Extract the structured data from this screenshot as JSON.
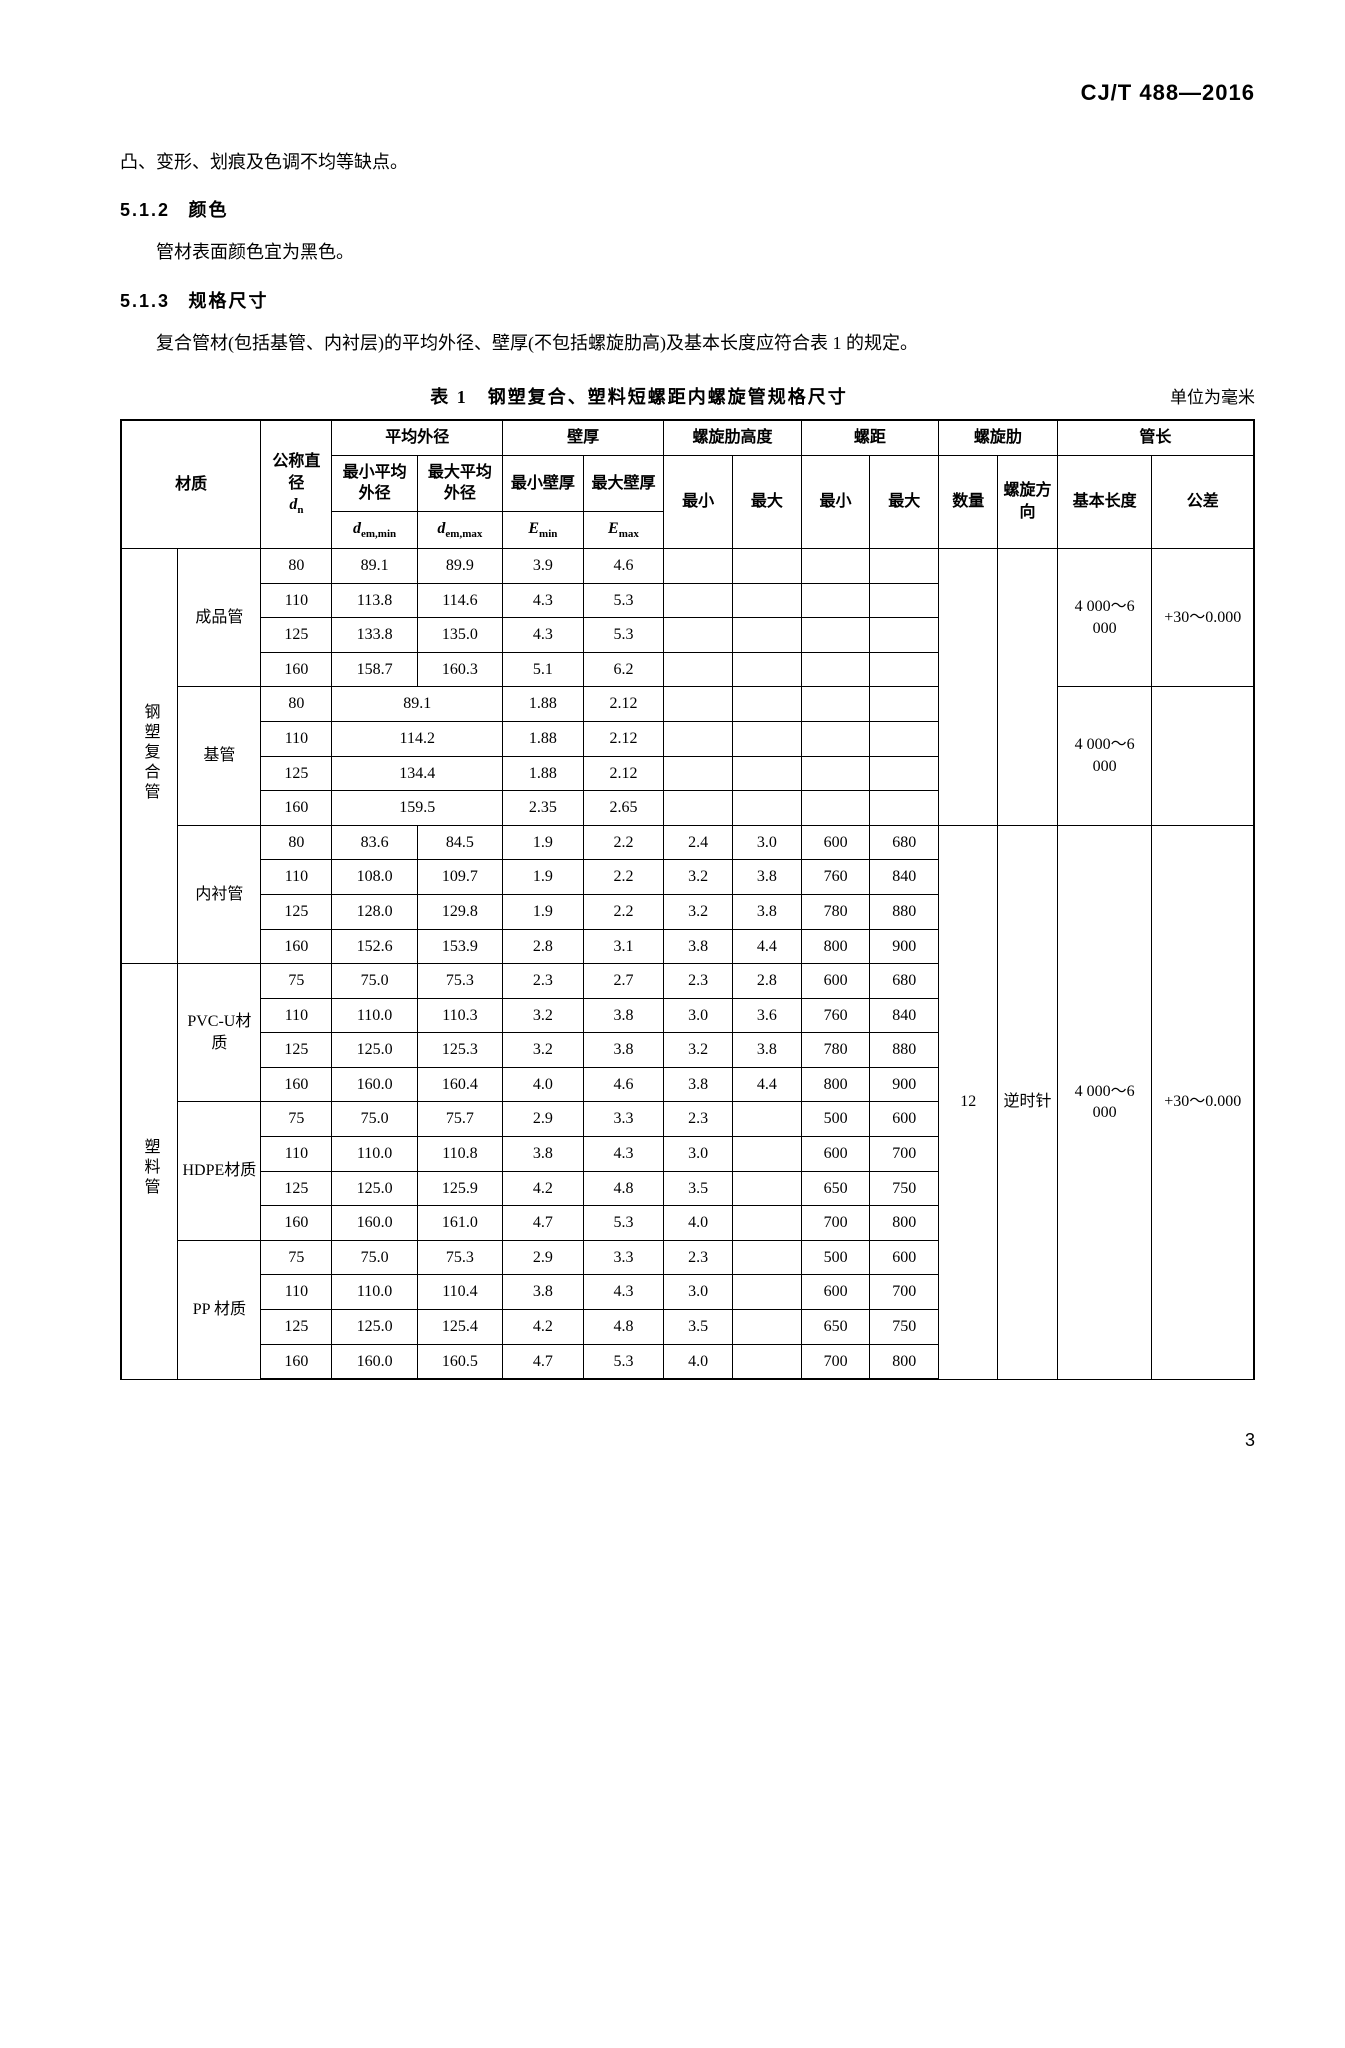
{
  "standard_code": "CJ/T 488—2016",
  "intro_line": "凸、变形、划痕及色调不均等缺点。",
  "sec_512_num": "5.1.2",
  "sec_512_title": "颜色",
  "sec_512_body": "管材表面颜色宜为黑色。",
  "sec_513_num": "5.1.3",
  "sec_513_title": "规格尺寸",
  "sec_513_body": "复合管材(包括基管、内衬层)的平均外径、壁厚(不包括螺旋肋高)及基本长度应符合表 1 的规定。",
  "table_caption": "表 1　钢塑复合、塑料短螺距内螺旋管规格尺寸",
  "table_unit": "单位为毫米",
  "page_number": "3",
  "col_widths": {
    "mat1": 48,
    "mat2": 70,
    "dn": 60,
    "dmin": 72,
    "dmax": 72,
    "emin": 68,
    "emax": 68,
    "hmin": 58,
    "hmax": 58,
    "pmin": 58,
    "pmax": 58,
    "qty": 50,
    "dir": 50,
    "len": 80,
    "tol": 86
  },
  "head": {
    "material": "材质",
    "dn": "公称直径",
    "dn_sym": "d",
    "dn_sub": "n",
    "avg_od": "平均外径",
    "avg_od_min": "最小平均外径",
    "avg_od_max": "最大平均外径",
    "dmin_sym": "d",
    "dmin_sub": "em,min",
    "dmax_sym": "d",
    "dmax_sub": "em,max",
    "wall": "壁厚",
    "wall_min": "最小壁厚",
    "wall_max": "最大壁厚",
    "emin_sym": "E",
    "emin_sub": "min",
    "emax_sym": "E",
    "emax_sub": "max",
    "rib_h": "螺旋肋高度",
    "min": "最小",
    "max": "最大",
    "pitch": "螺距",
    "rib": "螺旋肋",
    "qty": "数量",
    "dir": "螺旋方向",
    "length": "管长",
    "len_basic": "基本长度",
    "len_tol": "公差"
  },
  "groups": {
    "steel": "钢塑复合管",
    "plastic": "塑料管",
    "finished": "成品管",
    "base": "基管",
    "liner": "内衬管",
    "pvcu": "PVC-U材质",
    "hdpe": "HDPE材质",
    "pp": "PP 材质"
  },
  "shared": {
    "qty": "12",
    "dir": "逆时针",
    "len1": "4 000～6 000",
    "tol1": "+30～0.000",
    "len3": "4 000～6 000",
    "tol3": "+30～0.000"
  },
  "rows": {
    "finished": [
      {
        "dn": "80",
        "dmin": "89.1",
        "dmax": "89.9",
        "emin": "3.9",
        "emax": "4.6"
      },
      {
        "dn": "110",
        "dmin": "113.8",
        "dmax": "114.6",
        "emin": "4.3",
        "emax": "5.3"
      },
      {
        "dn": "125",
        "dmin": "133.8",
        "dmax": "135.0",
        "emin": "4.3",
        "emax": "5.3"
      },
      {
        "dn": "160",
        "dmin": "158.7",
        "dmax": "160.3",
        "emin": "5.1",
        "emax": "6.2"
      }
    ],
    "base": [
      {
        "dn": "80",
        "d": "89.1",
        "emin": "1.88",
        "emax": "2.12"
      },
      {
        "dn": "110",
        "d": "114.2",
        "emin": "1.88",
        "emax": "2.12"
      },
      {
        "dn": "125",
        "d": "134.4",
        "emin": "1.88",
        "emax": "2.12"
      },
      {
        "dn": "160",
        "d": "159.5",
        "emin": "2.35",
        "emax": "2.65"
      }
    ],
    "liner": [
      {
        "dn": "80",
        "dmin": "83.6",
        "dmax": "84.5",
        "emin": "1.9",
        "emax": "2.2",
        "hmin": "2.4",
        "hmax": "3.0",
        "pmin": "600",
        "pmax": "680"
      },
      {
        "dn": "110",
        "dmin": "108.0",
        "dmax": "109.7",
        "emin": "1.9",
        "emax": "2.2",
        "hmin": "3.2",
        "hmax": "3.8",
        "pmin": "760",
        "pmax": "840"
      },
      {
        "dn": "125",
        "dmin": "128.0",
        "dmax": "129.8",
        "emin": "1.9",
        "emax": "2.2",
        "hmin": "3.2",
        "hmax": "3.8",
        "pmin": "780",
        "pmax": "880"
      },
      {
        "dn": "160",
        "dmin": "152.6",
        "dmax": "153.9",
        "emin": "2.8",
        "emax": "3.1",
        "hmin": "3.8",
        "hmax": "4.4",
        "pmin": "800",
        "pmax": "900"
      }
    ],
    "pvcu": [
      {
        "dn": "75",
        "dmin": "75.0",
        "dmax": "75.3",
        "emin": "2.3",
        "emax": "2.7",
        "hmin": "2.3",
        "hmax": "2.8",
        "pmin": "600",
        "pmax": "680"
      },
      {
        "dn": "110",
        "dmin": "110.0",
        "dmax": "110.3",
        "emin": "3.2",
        "emax": "3.8",
        "hmin": "3.0",
        "hmax": "3.6",
        "pmin": "760",
        "pmax": "840"
      },
      {
        "dn": "125",
        "dmin": "125.0",
        "dmax": "125.3",
        "emin": "3.2",
        "emax": "3.8",
        "hmin": "3.2",
        "hmax": "3.8",
        "pmin": "780",
        "pmax": "880"
      },
      {
        "dn": "160",
        "dmin": "160.0",
        "dmax": "160.4",
        "emin": "4.0",
        "emax": "4.6",
        "hmin": "3.8",
        "hmax": "4.4",
        "pmin": "800",
        "pmax": "900"
      }
    ],
    "hdpe": [
      {
        "dn": "75",
        "dmin": "75.0",
        "dmax": "75.7",
        "emin": "2.9",
        "emax": "3.3",
        "hmin": "2.3",
        "hmax": "",
        "pmin": "500",
        "pmax": "600"
      },
      {
        "dn": "110",
        "dmin": "110.0",
        "dmax": "110.8",
        "emin": "3.8",
        "emax": "4.3",
        "hmin": "3.0",
        "hmax": "",
        "pmin": "600",
        "pmax": "700"
      },
      {
        "dn": "125",
        "dmin": "125.0",
        "dmax": "125.9",
        "emin": "4.2",
        "emax": "4.8",
        "hmin": "3.5",
        "hmax": "",
        "pmin": "650",
        "pmax": "750"
      },
      {
        "dn": "160",
        "dmin": "160.0",
        "dmax": "161.0",
        "emin": "4.7",
        "emax": "5.3",
        "hmin": "4.0",
        "hmax": "",
        "pmin": "700",
        "pmax": "800"
      }
    ],
    "pp": [
      {
        "dn": "75",
        "dmin": "75.0",
        "dmax": "75.3",
        "emin": "2.9",
        "emax": "3.3",
        "hmin": "2.3",
        "hmax": "",
        "pmin": "500",
        "pmax": "600"
      },
      {
        "dn": "110",
        "dmin": "110.0",
        "dmax": "110.4",
        "emin": "3.8",
        "emax": "4.3",
        "hmin": "3.0",
        "hmax": "",
        "pmin": "600",
        "pmax": "700"
      },
      {
        "dn": "125",
        "dmin": "125.0",
        "dmax": "125.4",
        "emin": "4.2",
        "emax": "4.8",
        "hmin": "3.5",
        "hmax": "",
        "pmin": "650",
        "pmax": "750"
      },
      {
        "dn": "160",
        "dmin": "160.0",
        "dmax": "160.5",
        "emin": "4.7",
        "emax": "5.3",
        "hmin": "4.0",
        "hmax": "",
        "pmin": "700",
        "pmax": "800"
      }
    ]
  }
}
